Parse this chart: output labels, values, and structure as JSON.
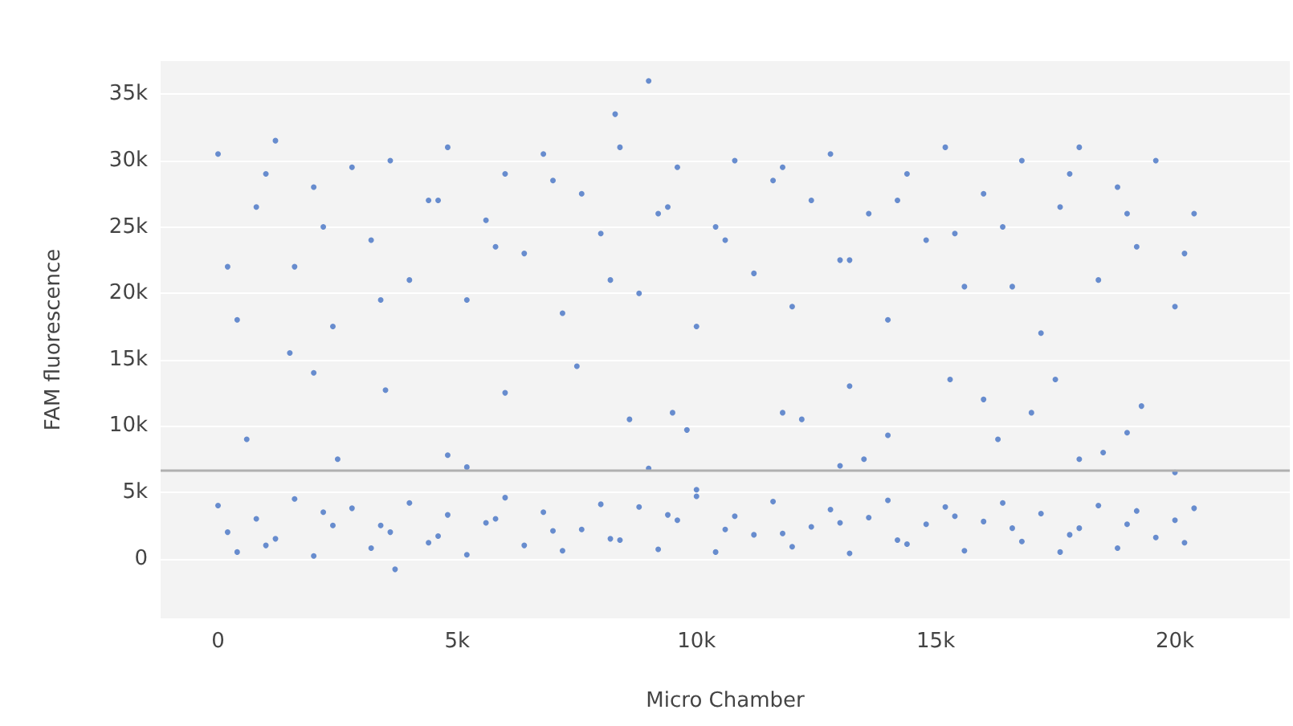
{
  "chart_data": {
    "type": "scatter",
    "xlabel": "Micro Chamber",
    "ylabel": "FAM fluorescence",
    "xlim": [
      -1200,
      22400
    ],
    "ylim": [
      -4500,
      37500
    ],
    "xticks": [
      {
        "value": 0,
        "label": "0"
      },
      {
        "value": 5000,
        "label": "5k"
      },
      {
        "value": 10000,
        "label": "10k"
      },
      {
        "value": 15000,
        "label": "15k"
      },
      {
        "value": 20000,
        "label": "20k"
      }
    ],
    "yticks": [
      {
        "value": 0,
        "label": "0"
      },
      {
        "value": 5000,
        "label": "5k"
      },
      {
        "value": 10000,
        "label": "10k"
      },
      {
        "value": 15000,
        "label": "15k"
      },
      {
        "value": 20000,
        "label": "20k"
      },
      {
        "value": 25000,
        "label": "25k"
      },
      {
        "value": 30000,
        "label": "30k"
      },
      {
        "value": 35000,
        "label": "35k"
      }
    ],
    "grid": "y",
    "marker": "circle",
    "ref_lines": [
      {
        "axis": "y",
        "value": 6700,
        "color": "#b0b0b0"
      }
    ],
    "series": [
      {
        "color": "#4472c4",
        "x": [
          0,
          400,
          800,
          1200,
          1600,
          2000,
          2400,
          2800,
          3200,
          3600,
          4000,
          4400,
          4800,
          5200,
          5600,
          6000,
          6400,
          6800,
          7200,
          7600,
          8000,
          8400,
          8800,
          9200,
          9600,
          10000,
          10400,
          10800,
          11200,
          11600,
          12000,
          12400,
          12800,
          13200,
          13600,
          14000,
          14400,
          14800,
          15200,
          15600,
          16000,
          16400,
          16800,
          17200,
          17600,
          18000,
          18400,
          18800,
          19200,
          19600,
          20000,
          20400,
          200,
          1000,
          2200,
          3400,
          4600,
          5800,
          7000,
          8200,
          9400,
          10600,
          11800,
          13000,
          14200,
          15400,
          16600,
          17800,
          19000,
          20200
        ],
        "values": [
          30500,
          18000,
          26500,
          31500,
          22000,
          28000,
          17500,
          29500,
          24000,
          30000,
          21000,
          27000,
          31000,
          19500,
          25500,
          29000,
          23000,
          30500,
          18500,
          27500,
          24500,
          31000,
          20000,
          26000,
          29500,
          17500,
          25000,
          30000,
          21500,
          28500,
          19000,
          27000,
          30500,
          22500,
          26000,
          18000,
          29000,
          24000,
          31000,
          20500,
          27500,
          25000,
          30000,
          17000,
          26500,
          31000,
          21000,
          28000,
          23500,
          30000,
          19000,
          26000,
          22000,
          29000,
          25000,
          19500,
          27000,
          23500,
          28500,
          21000,
          26500,
          24000,
          29500,
          22500,
          27000,
          24500,
          20500,
          29000,
          26000,
          23000
        ]
      },
      {
        "color": "#4472c4",
        "x": [
          0,
          400,
          800,
          1200,
          1600,
          2000,
          2400,
          2800,
          3200,
          3600,
          4000,
          4400,
          4800,
          5200,
          5600,
          6000,
          6400,
          6800,
          7200,
          7600,
          8000,
          8400,
          8800,
          9200,
          9600,
          10000,
          10400,
          10800,
          11200,
          11600,
          12000,
          12400,
          12800,
          13200,
          13600,
          14000,
          14400,
          14800,
          15200,
          15600,
          16000,
          16400,
          16800,
          17200,
          17600,
          18000,
          18400,
          18800,
          19200,
          19600,
          20000,
          20400,
          200,
          1000,
          2200,
          3400,
          4600,
          5800,
          7000,
          8200,
          9400,
          10600,
          11800,
          13000,
          14200,
          15400,
          16600,
          17800,
          19000,
          20200,
          3700
        ],
        "values": [
          4000,
          500,
          3000,
          1500,
          4500,
          200,
          2500,
          3800,
          800,
          2000,
          4200,
          1200,
          3300,
          300,
          2700,
          4600,
          1000,
          3500,
          600,
          2200,
          4100,
          1400,
          3900,
          700,
          2900,
          4700,
          500,
          3200,
          1800,
          4300,
          900,
          2400,
          3700,
          400,
          3100,
          4400,
          1100,
          2600,
          3900,
          600,
          2800,
          4200,
          1300,
          3400,
          500,
          2300,
          4000,
          800,
          3600,
          1600,
          2900,
          3800,
          2000,
          1000,
          3500,
          2500,
          1700,
          3000,
          2100,
          1500,
          3300,
          2200,
          1900,
          2700,
          1400,
          3200,
          2300,
          1800,
          2600,
          1200,
          -800
        ]
      },
      {
        "color": "#4472c4",
        "x": [
          9000,
          8300,
          3500,
          600,
          2000,
          1500,
          7500,
          9500,
          9800,
          11800,
          12200,
          13200,
          13000,
          14000,
          15300,
          16000,
          16300,
          17000,
          17500,
          18000,
          18500,
          19300,
          20000,
          19000,
          8600,
          4800,
          5200,
          9000,
          10000,
          13500,
          2500,
          6000
        ],
        "values": [
          36000,
          33500,
          12700,
          9000,
          14000,
          15500,
          14500,
          11000,
          9700,
          11000,
          10500,
          13000,
          7000,
          9300,
          13500,
          12000,
          9000,
          11000,
          13500,
          7500,
          8000,
          11500,
          6500,
          9500,
          10500,
          7800,
          6900,
          6800,
          5200,
          7500,
          7500,
          12500
        ]
      }
    ]
  }
}
